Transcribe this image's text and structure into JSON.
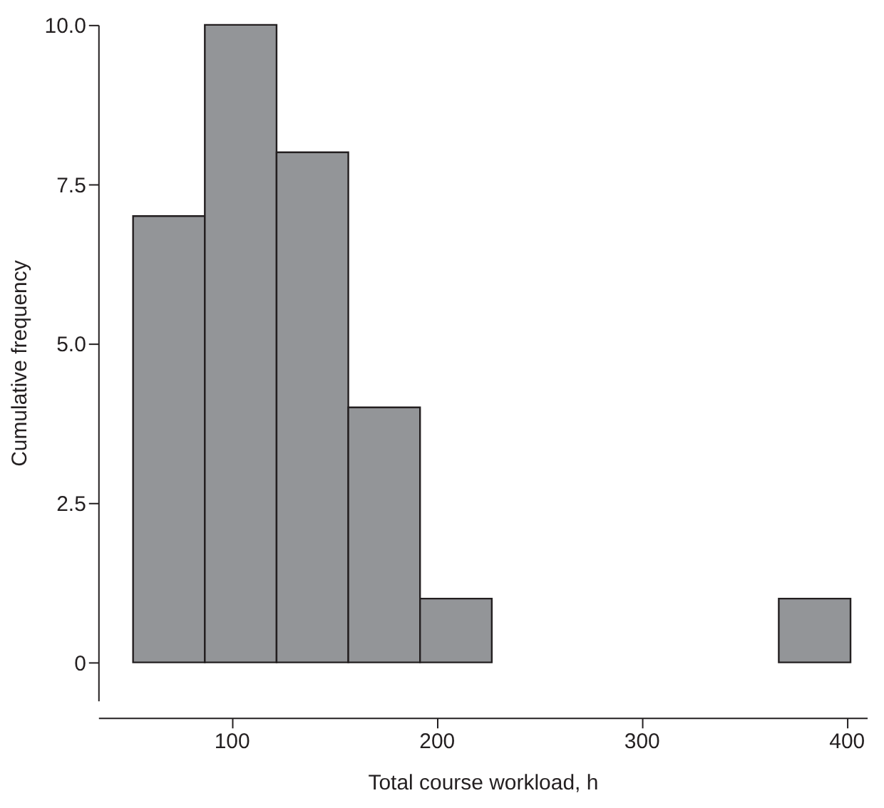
{
  "chart_data": {
    "type": "histogram",
    "xlabel": "Total course workload, h",
    "ylabel": "Cumulative frequency",
    "bins": [
      52,
      87,
      122,
      157,
      192,
      227,
      262,
      297,
      332,
      367,
      402
    ],
    "values": [
      7,
      10,
      8,
      4,
      1,
      0,
      0,
      0,
      0,
      1
    ],
    "color": "#939598",
    "xlim": [
      35,
      410
    ],
    "xticks": [
      100,
      200,
      300,
      400
    ],
    "ylim": [
      -0.6,
      10
    ],
    "yticks": [
      {
        "value": 0,
        "label": "0"
      },
      {
        "value": 2.5,
        "label": "2.5"
      },
      {
        "value": 5,
        "label": "5.0"
      },
      {
        "value": 7.5,
        "label": "7.5"
      },
      {
        "value": 10,
        "label": "10.0"
      }
    ],
    "grid": false
  }
}
